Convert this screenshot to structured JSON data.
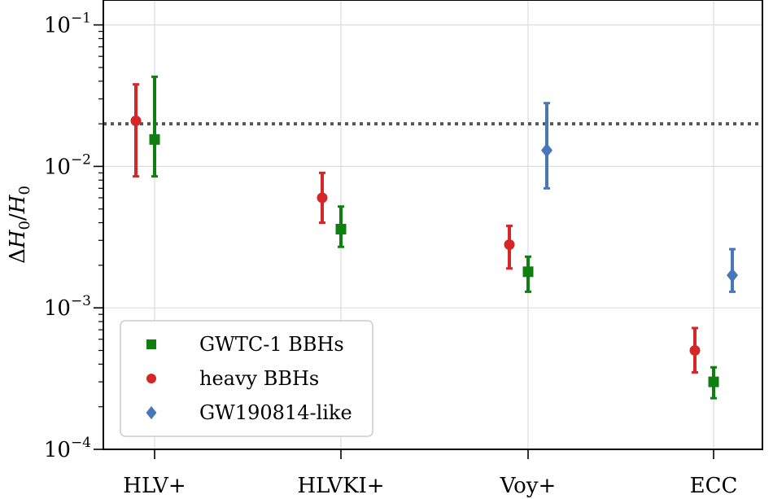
{
  "chart_data": {
    "type": "scatter",
    "yscale": "log",
    "ylim": [
      0.0001,
      0.15
    ],
    "categories": [
      "HLV+",
      "HLVKI+",
      "Voy+",
      "ECC"
    ],
    "ylabel": "ΔH0/H0",
    "yticks": [
      {
        "value": 0.1,
        "base": "10",
        "exp": "−1"
      },
      {
        "value": 0.01,
        "base": "10",
        "exp": "−2"
      },
      {
        "value": 0.001,
        "base": "10",
        "exp": "−3"
      },
      {
        "value": 0.0001,
        "base": "10",
        "exp": "−4"
      }
    ],
    "reference_line": {
      "value": 0.02,
      "style": "dotted",
      "color": "#555555"
    },
    "grid": true,
    "legend_position": "lower-left",
    "series": [
      {
        "name": "GWTC-1 BBHs",
        "color": "#0f7f12",
        "marker": "square",
        "points": [
          {
            "category": "HLV+",
            "y": 0.0155,
            "lo": 0.0085,
            "hi": 0.043
          },
          {
            "category": "HLVKI+",
            "y": 0.0036,
            "lo": 0.0027,
            "hi": 0.0052
          },
          {
            "category": "Voy+",
            "y": 0.0018,
            "lo": 0.0013,
            "hi": 0.0023
          },
          {
            "category": "ECC",
            "y": 0.0003,
            "lo": 0.00023,
            "hi": 0.00038
          }
        ]
      },
      {
        "name": "heavy BBHs",
        "color": "#d62728",
        "marker": "circle",
        "points": [
          {
            "category": "HLV+",
            "y": 0.021,
            "lo": 0.0085,
            "hi": 0.038
          },
          {
            "category": "HLVKI+",
            "y": 0.006,
            "lo": 0.004,
            "hi": 0.009
          },
          {
            "category": "Voy+",
            "y": 0.0028,
            "lo": 0.0019,
            "hi": 0.0038
          },
          {
            "category": "ECC",
            "y": 0.0005,
            "lo": 0.00035,
            "hi": 0.00072
          }
        ]
      },
      {
        "name": "GW190814-like",
        "color": "#4876b8",
        "marker": "diamond",
        "points": [
          {
            "category": "Voy+",
            "y": 0.013,
            "lo": 0.007,
            "hi": 0.028
          },
          {
            "category": "ECC",
            "y": 0.0017,
            "lo": 0.0013,
            "hi": 0.0026
          }
        ]
      }
    ]
  }
}
